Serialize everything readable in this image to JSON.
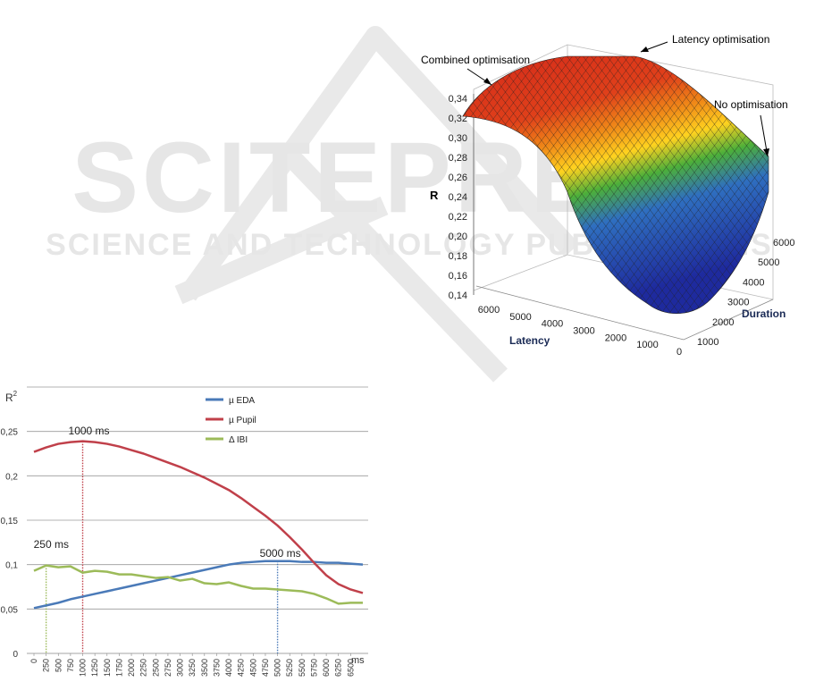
{
  "watermark": {
    "title": "SCITEPRESS",
    "subtitle": "SCIENCE AND TECHNOLOGY PUBLICATIONS"
  },
  "chart_data": [
    {
      "type": "surface",
      "zlabel": "R",
      "xlabel": "Latency",
      "ylabel": "Duration",
      "z_ticks": [
        "0,14",
        "0,16",
        "0,18",
        "0,20",
        "0,22",
        "0,24",
        "0,26",
        "0,28",
        "0,30",
        "0,32",
        "0,34"
      ],
      "latency_ticks": [
        "6000",
        "5000",
        "4000",
        "3000",
        "2000",
        "1000",
        "0"
      ],
      "duration_ticks": [
        "1000",
        "2000",
        "3000",
        "4000",
        "5000",
        "6000"
      ],
      "zlim": [
        0.14,
        0.34
      ],
      "annotations": [
        {
          "text": "Combined optimisation"
        },
        {
          "text": "Latency optimisation"
        },
        {
          "text": "No optimisation"
        }
      ],
      "colormap": [
        "#1e2a9e",
        "#2f4fd0",
        "#2fa838",
        "#9acd32",
        "#ffd21f",
        "#f0701a",
        "#d42a1a"
      ]
    },
    {
      "type": "line",
      "ylabel": "R",
      "ylabel_sup": "2",
      "xunit": "ms",
      "ylim": [
        0,
        0.3
      ],
      "y_ticks": [
        0,
        0.05,
        0.1,
        0.15,
        0.2,
        0.25
      ],
      "y_tick_labels": [
        "0",
        "0,05",
        "0,1",
        "0,15",
        "0,2",
        "0,25"
      ],
      "x": [
        0,
        250,
        500,
        750,
        1000,
        1250,
        1500,
        1750,
        2000,
        2250,
        2500,
        2750,
        3000,
        3250,
        3500,
        3750,
        4000,
        4250,
        4500,
        4750,
        5000,
        5250,
        5500,
        5750,
        6000,
        6250,
        6500,
        6750
      ],
      "x_tick_labels": [
        "0",
        "250",
        "500",
        "750",
        "1000",
        "1250",
        "1500",
        "1750",
        "2000",
        "2250",
        "2500",
        "2750",
        "3000",
        "3250",
        "3500",
        "3750",
        "4000",
        "4250",
        "4500",
        "4750",
        "5000",
        "5250",
        "5500",
        "5750",
        "6000",
        "6250",
        "6500"
      ],
      "series": [
        {
          "name": "µ EDA",
          "color": "#4a7ab8",
          "values": [
            0.051,
            0.054,
            0.057,
            0.061,
            0.064,
            0.067,
            0.07,
            0.073,
            0.076,
            0.079,
            0.082,
            0.085,
            0.088,
            0.091,
            0.094,
            0.097,
            0.1,
            0.102,
            0.103,
            0.104,
            0.104,
            0.104,
            0.103,
            0.103,
            0.102,
            0.102,
            0.101,
            0.1
          ]
        },
        {
          "name": "µ Pupil",
          "color": "#c0404a",
          "values": [
            0.227,
            0.232,
            0.236,
            0.238,
            0.239,
            0.238,
            0.236,
            0.233,
            0.229,
            0.225,
            0.22,
            0.215,
            0.21,
            0.204,
            0.198,
            0.191,
            0.184,
            0.175,
            0.165,
            0.155,
            0.144,
            0.131,
            0.117,
            0.102,
            0.088,
            0.078,
            0.072,
            0.068
          ]
        },
        {
          "name": "Δ IBI",
          "color": "#9cbb59",
          "values": [
            0.093,
            0.099,
            0.097,
            0.098,
            0.091,
            0.093,
            0.092,
            0.089,
            0.089,
            0.087,
            0.085,
            0.086,
            0.082,
            0.084,
            0.079,
            0.078,
            0.08,
            0.076,
            0.073,
            0.073,
            0.072,
            0.071,
            0.07,
            0.067,
            0.062,
            0.056,
            0.057,
            0.057
          ]
        }
      ],
      "markers": [
        {
          "x": 250,
          "label": "250 ms",
          "color": "#9cbb59"
        },
        {
          "x": 1000,
          "label": "1000 ms",
          "color": "#c0404a"
        },
        {
          "x": 5000,
          "label": "5000 ms",
          "color": "#4a7ab8"
        }
      ]
    }
  ]
}
